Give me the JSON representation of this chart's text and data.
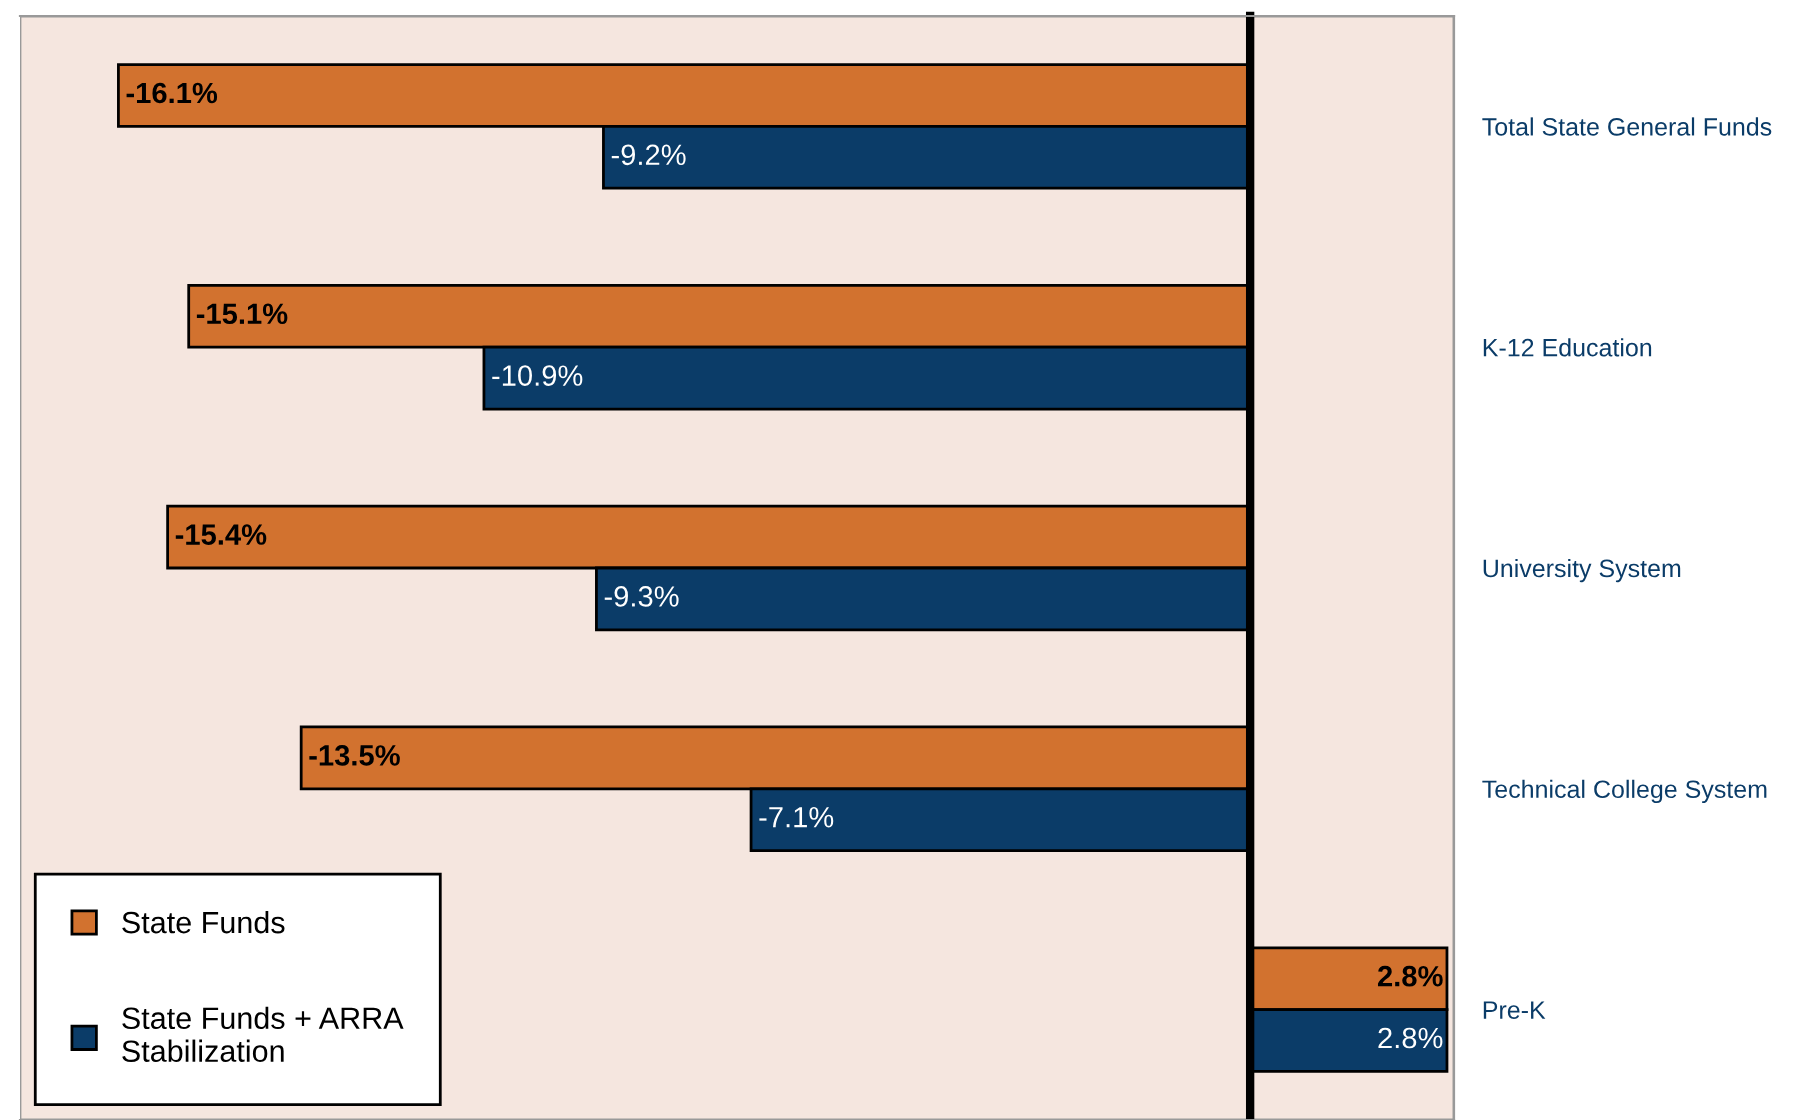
{
  "chart_data": {
    "type": "bar",
    "orientation": "horizontal",
    "categories": [
      "Total State General Funds",
      "K-12 Education",
      "University System",
      "Technical College System",
      "Pre-K"
    ],
    "series": [
      {
        "name": "State Funds",
        "color": "#d2722f",
        "values": [
          -16.1,
          -15.1,
          -15.4,
          -13.5,
          2.8
        ],
        "value_labels": [
          "-16.1%",
          "-15.1%",
          "-15.4%",
          "-13.5%",
          "2.8%"
        ]
      },
      {
        "name": "State Funds + ARRA Stabilization",
        "color": "#0b3c68",
        "values": [
          -9.2,
          -10.9,
          -9.3,
          -7.1,
          2.8
        ],
        "value_labels": [
          "-9.2%",
          "-10.9%",
          "-9.3%",
          "-7.1%",
          "2.8%"
        ]
      }
    ],
    "xlim": [
      -17.5,
      2.9
    ],
    "legend": "bottom left",
    "grid": false
  }
}
